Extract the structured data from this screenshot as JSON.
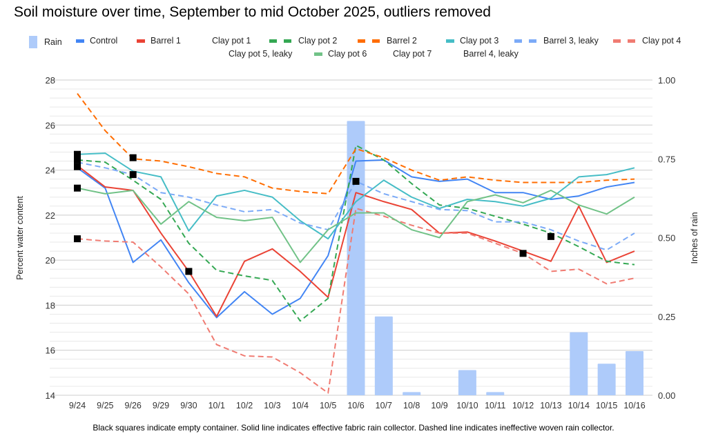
{
  "chart_data": {
    "type": "line",
    "title": "Soil moisture over time, September to mid October 2025, outliers removed",
    "footnote": "Black squares indicate empty container. Solid line indicates effective fabric rain collector. Dashed line indicates ineffective woven rain collector.",
    "categories": [
      "9/24",
      "9/25",
      "9/26",
      "9/29",
      "9/30",
      "10/1",
      "10/2",
      "10/3",
      "10/4",
      "10/5",
      "10/6",
      "10/7",
      "10/8",
      "10/9",
      "10/10",
      "10/11",
      "10/12",
      "10/13",
      "10/14",
      "10/15",
      "10/16"
    ],
    "ylabel": "Percent water content",
    "ylim": [
      14,
      28
    ],
    "yticks": [
      "14",
      "16",
      "18",
      "20",
      "22",
      "24",
      "26",
      "28"
    ],
    "y2label": "Inches of rain",
    "y2lim": [
      0,
      1
    ],
    "y2ticks": [
      "0.00",
      "0.25",
      "0.50",
      "0.75",
      "1.00"
    ],
    "grid": true,
    "legend_position": "top",
    "legend": [
      "Rain",
      "Control",
      "Barrel 1",
      "Clay pot 1",
      "Clay pot 2",
      "Barrel 2",
      "Clay pot 3",
      "Barrel 3, leaky",
      "Clay pot 4",
      "Clay pot 5, leaky",
      "Clay pot 6",
      "Clay pot 7",
      "Barrel 4, leaky"
    ],
    "rain": {
      "name": "Rain",
      "axis": "right",
      "color": "#aecbfa",
      "values": [
        0,
        0,
        0,
        0,
        0,
        0,
        0,
        0,
        0,
        0,
        0.87,
        0.25,
        0.01,
        0,
        0.08,
        0.01,
        0,
        0,
        0.2,
        0.1,
        0.14
      ]
    },
    "series": [
      {
        "name": "Control",
        "color": "#4285f4",
        "dashed": false,
        "values": [
          24.1,
          23.2,
          19.9,
          20.9,
          19.0,
          17.45,
          18.6,
          17.6,
          18.3,
          20.2,
          24.4,
          24.45,
          23.7,
          23.5,
          23.6,
          23.0,
          23.0,
          22.7,
          22.85,
          23.25,
          23.45
        ]
      },
      {
        "name": "Barrel 1",
        "color": "#ea4335",
        "dashed": false,
        "values": [
          24.2,
          23.25,
          23.1,
          21.2,
          19.5,
          17.5,
          19.95,
          20.5,
          19.5,
          18.35,
          23.0,
          22.6,
          22.25,
          21.2,
          21.25,
          20.85,
          20.4,
          19.95,
          22.4,
          19.9,
          20.4
        ]
      },
      {
        "name": "Clay pot 2",
        "color": "#34a853",
        "dashed": true,
        "values": [
          24.45,
          24.35,
          23.55,
          22.7,
          20.75,
          19.55,
          19.3,
          19.1,
          17.3,
          18.3,
          25.1,
          24.45,
          23.4,
          22.45,
          22.3,
          21.95,
          21.6,
          21.2,
          20.6,
          19.95,
          19.8
        ]
      },
      {
        "name": "Barrel 2",
        "color": "#ff6d01",
        "dashed": true,
        "values": [
          27.4,
          25.75,
          24.5,
          24.4,
          24.15,
          23.85,
          23.7,
          23.2,
          23.05,
          22.95,
          24.95,
          24.55,
          24.0,
          23.55,
          23.7,
          23.55,
          23.45,
          23.45,
          23.45,
          23.55,
          23.6
        ]
      },
      {
        "name": "Clay pot 3",
        "color": "#46bdc6",
        "dashed": false,
        "values": [
          24.7,
          24.75,
          23.95,
          23.7,
          21.3,
          22.85,
          23.1,
          22.8,
          21.75,
          20.95,
          22.6,
          23.55,
          22.8,
          22.3,
          22.7,
          22.6,
          22.4,
          22.75,
          23.7,
          23.8,
          24.1
        ]
      },
      {
        "name": "Barrel 3, leaky",
        "color": "#7baaf7",
        "dashed": true,
        "values": [
          24.35,
          24.1,
          23.8,
          23.0,
          22.8,
          22.45,
          22.15,
          22.25,
          21.65,
          21.35,
          23.5,
          22.95,
          22.6,
          22.25,
          22.2,
          21.7,
          21.7,
          21.35,
          20.85,
          20.45,
          21.2
        ]
      },
      {
        "name": "Clay pot 4",
        "color": "#f07b72",
        "dashed": true,
        "values": [
          20.95,
          20.85,
          20.8,
          19.7,
          18.5,
          16.25,
          15.75,
          15.7,
          15.0,
          14.1,
          22.3,
          21.95,
          21.55,
          21.2,
          21.2,
          20.75,
          20.3,
          19.5,
          19.6,
          18.95,
          19.2
        ]
      },
      {
        "name": "Clay pot 6",
        "color": "#71c287",
        "dashed": false,
        "values": [
          23.2,
          22.95,
          23.1,
          21.6,
          22.6,
          21.9,
          21.75,
          21.9,
          19.9,
          21.35,
          22.1,
          22.1,
          21.35,
          21.0,
          22.6,
          22.9,
          22.55,
          23.1,
          22.45,
          22.05,
          22.8
        ]
      }
    ],
    "empty_container_markers": [
      {
        "x": "9/24",
        "y": 24.7
      },
      {
        "x": "9/24",
        "y": 24.45
      },
      {
        "x": "9/24",
        "y": 24.15
      },
      {
        "x": "9/24",
        "y": 23.2
      },
      {
        "x": "9/24",
        "y": 20.95
      },
      {
        "x": "9/26",
        "y": 24.55
      },
      {
        "x": "9/26",
        "y": 23.8
      },
      {
        "x": "9/30",
        "y": 19.5
      },
      {
        "x": "10/6",
        "y": 23.5
      },
      {
        "x": "10/12",
        "y": 20.3
      },
      {
        "x": "10/13",
        "y": 21.05
      }
    ],
    "marker_color": "#000000"
  }
}
